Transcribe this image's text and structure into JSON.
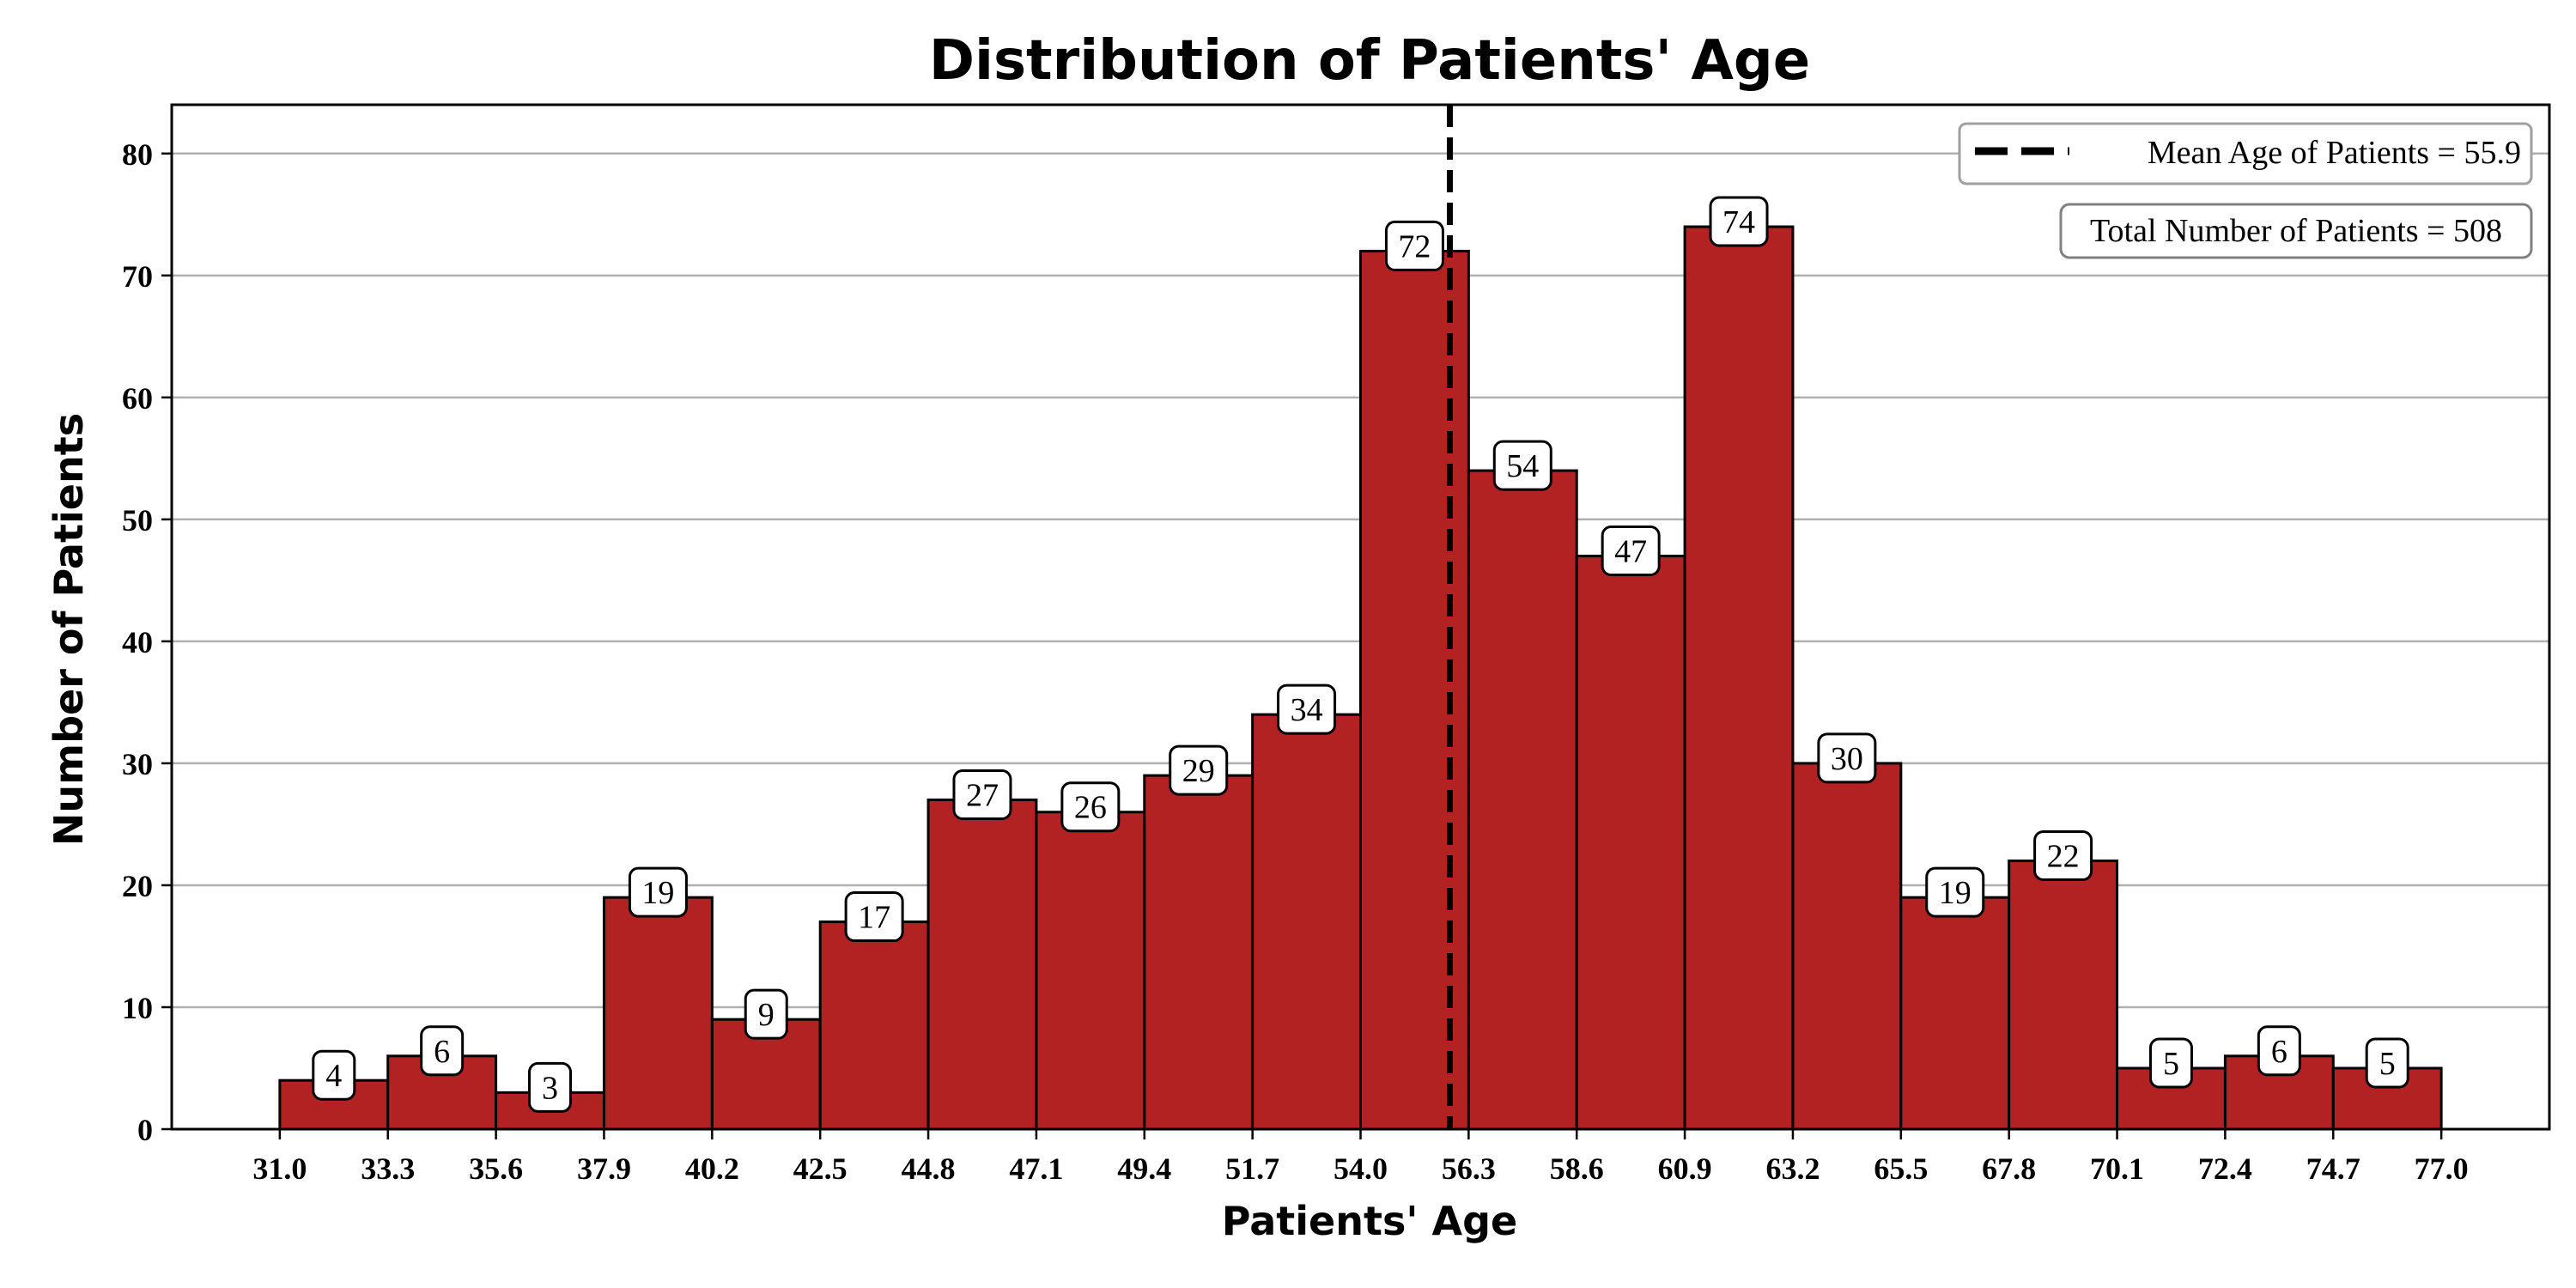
{
  "chart_data": {
    "type": "bar",
    "title": "Distribution of Patients' Age",
    "xlabel": "Patients' Age",
    "ylabel": "Number of Patients",
    "bin_edges": [
      31.0,
      33.3,
      35.6,
      37.9,
      40.2,
      42.5,
      44.8,
      47.1,
      49.4,
      51.7,
      54.0,
      56.3,
      58.6,
      60.9,
      63.2,
      65.5,
      67.8,
      70.1,
      72.4,
      74.7,
      77.0
    ],
    "x_tick_labels": [
      "31.0",
      "33.3",
      "35.6",
      "37.9",
      "40.2",
      "42.5",
      "44.8",
      "47.1",
      "49.4",
      "51.7",
      "54.0",
      "56.3",
      "58.6",
      "60.9",
      "63.2",
      "65.5",
      "67.8",
      "70.1",
      "72.4",
      "74.7",
      "77.0"
    ],
    "values": [
      4,
      6,
      3,
      19,
      9,
      17,
      27,
      26,
      29,
      34,
      72,
      54,
      47,
      74,
      30,
      19,
      22,
      5,
      6,
      5
    ],
    "data_labels": [
      "4",
      "6",
      "3",
      "19",
      "9",
      "17",
      "27",
      "26",
      "29",
      "34",
      "72",
      "54",
      "47",
      "74",
      "30",
      "19",
      "22",
      "5",
      "6",
      "5"
    ],
    "xlim": [
      28.7,
      79.3
    ],
    "ylim": [
      0,
      84
    ],
    "y_ticks": [
      0,
      10,
      20,
      30,
      40,
      50,
      60,
      70,
      80
    ],
    "y_tick_labels": [
      "0",
      "10",
      "20",
      "30",
      "40",
      "50",
      "60",
      "70",
      "80"
    ],
    "grid": "horizontal",
    "bar_color": "#b22222",
    "edge_color": "#000000",
    "mean_line": {
      "value": 55.9,
      "label": "Mean Age of Patients = 55.9",
      "style": "dashed",
      "color": "#000000"
    },
    "total_annotation": "Total Number of Patients = 508",
    "legend_position": "top-right"
  }
}
